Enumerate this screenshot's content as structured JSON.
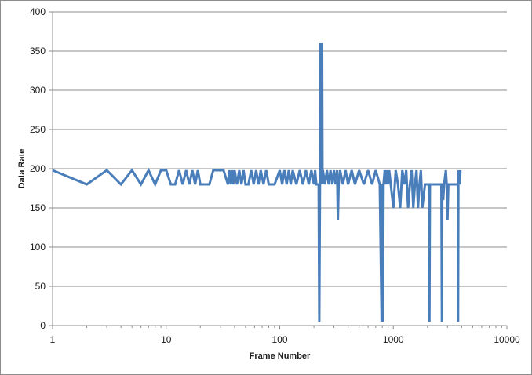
{
  "chart_data": {
    "type": "line",
    "xlabel": "Frame Number",
    "ylabel": "Data Rate",
    "xscale": "log",
    "xlim": [
      1,
      10000
    ],
    "ylim": [
      0,
      400
    ],
    "x_ticks": [
      1,
      10,
      100,
      1000,
      10000
    ],
    "x_tick_labels": [
      "1",
      "10",
      "100",
      "1000",
      "10000"
    ],
    "y_ticks": [
      0,
      50,
      100,
      150,
      200,
      250,
      300,
      350,
      400
    ],
    "y_tick_labels": [
      "0",
      "50",
      "100",
      "150",
      "200",
      "250",
      "300",
      "350",
      "400"
    ],
    "grid": "horizontal",
    "legend": "none",
    "series": [
      {
        "color": "#4a7ebb",
        "x": [
          1,
          2,
          3,
          4,
          5,
          6,
          7,
          8,
          9,
          10,
          11,
          12,
          13,
          14,
          15,
          16,
          17,
          18,
          19,
          20,
          22,
          24,
          26,
          28,
          30,
          32,
          35,
          36,
          37,
          38,
          39,
          40,
          42,
          44,
          46,
          48,
          50,
          53,
          56,
          59,
          62,
          65,
          68,
          72,
          76,
          80,
          90,
          100,
          105,
          110,
          115,
          120,
          125,
          130,
          140,
          150,
          160,
          170,
          180,
          190,
          200,
          205,
          210,
          220,
          223,
          226,
          228,
          230,
          232,
          234,
          236,
          238,
          240,
          250,
          260,
          270,
          280,
          290,
          300,
          310,
          320,
          325,
          330,
          340,
          360,
          380,
          400,
          430,
          460,
          500,
          550,
          600,
          650,
          700,
          760,
          790,
          795,
          800,
          805,
          810,
          820,
          840,
          860,
          880,
          900,
          920,
          950,
          1000,
          1050,
          1100,
          1150,
          1200,
          1250,
          1300,
          1350,
          1400,
          1450,
          1500,
          1550,
          1600,
          1650,
          1700,
          1750,
          1800,
          1900,
          2000,
          2050,
          2080,
          2100,
          2120,
          2200,
          2400,
          2600,
          2650,
          2680,
          2700,
          2750,
          2800,
          2900,
          2950,
          3000,
          3050,
          3100,
          3200,
          3400,
          3600,
          3700,
          3720,
          3740,
          3760,
          3780,
          3800,
          3850,
          3900
        ],
        "y": [
          198,
          180,
          198,
          180,
          198,
          180,
          198,
          180,
          198,
          198,
          180,
          180,
          198,
          180,
          198,
          180,
          198,
          180,
          198,
          180,
          180,
          180,
          198,
          198,
          198,
          198,
          180,
          198,
          180,
          198,
          180,
          198,
          180,
          198,
          180,
          198,
          180,
          180,
          198,
          180,
          198,
          180,
          198,
          180,
          198,
          180,
          180,
          198,
          180,
          198,
          180,
          198,
          180,
          198,
          180,
          198,
          180,
          198,
          180,
          198,
          180,
          198,
          180,
          180,
          5,
          180,
          360,
          180,
          360,
          180,
          360,
          180,
          198,
          180,
          198,
          180,
          198,
          180,
          198,
          180,
          198,
          135,
          180,
          198,
          180,
          198,
          180,
          198,
          180,
          198,
          180,
          198,
          180,
          198,
          180,
          5,
          180,
          5,
          180,
          5,
          180,
          198,
          180,
          198,
          180,
          198,
          180,
          150,
          198,
          180,
          150,
          198,
          180,
          198,
          150,
          180,
          198,
          150,
          180,
          198,
          150,
          180,
          198,
          150,
          180,
          180,
          180,
          5,
          180,
          180,
          180,
          180,
          180,
          180,
          5,
          180,
          160,
          180,
          198,
          180,
          135,
          180,
          180,
          180,
          180,
          180,
          180,
          5,
          180,
          198,
          180,
          198,
          180,
          198
        ]
      }
    ]
  }
}
